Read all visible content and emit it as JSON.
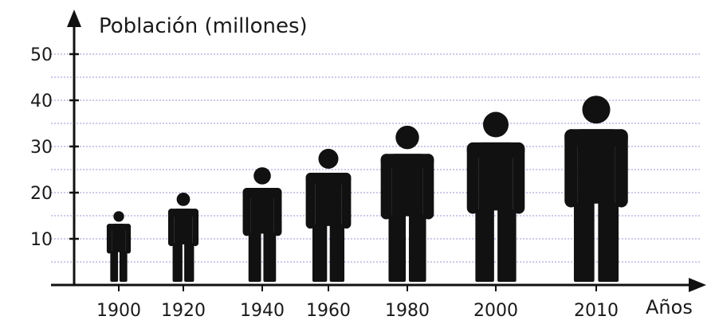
{
  "chart_data": {
    "type": "pictograph",
    "ylabel": "Población (millones)",
    "xlabel": "Años",
    "ylim": [
      0,
      50
    ],
    "yticks": [
      10,
      20,
      30,
      40,
      50
    ],
    "categories": [
      "1900",
      "1920",
      "1940",
      "1960",
      "1980",
      "2000",
      "2010"
    ],
    "values": [
      16,
      20,
      25.5,
      29.5,
      34.5,
      37.5,
      41
    ],
    "grid": "dashed horizontal",
    "colors": {
      "figure": "#111111",
      "grid": "#b9b9e3",
      "axis": "#111111"
    }
  }
}
